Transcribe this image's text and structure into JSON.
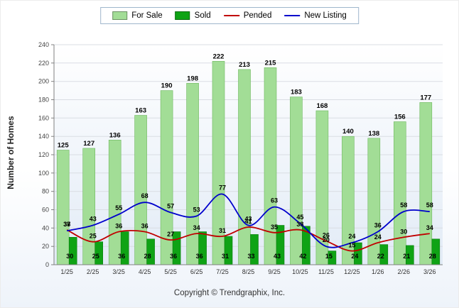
{
  "legend": {
    "items": [
      {
        "label": "For Sale",
        "swatch": "box",
        "color": "#A2DD96"
      },
      {
        "label": "Sold",
        "swatch": "box",
        "color": "#0FA315"
      },
      {
        "label": "Pended",
        "swatch": "line",
        "color": "#C00000"
      },
      {
        "label": "New Listing",
        "swatch": "line",
        "color": "#0000CC"
      }
    ]
  },
  "chart_data": {
    "type": "bar+line",
    "title": "",
    "xlabel": "",
    "ylabel": "Number of Homes",
    "ylim": [
      0,
      240
    ],
    "ytick_step": 20,
    "grid": true,
    "legend_position": "top",
    "categories": [
      "1/25",
      "2/25",
      "3/25",
      "4/25",
      "5/25",
      "6/25",
      "7/25",
      "8/25",
      "9/25",
      "10/25",
      "11/25",
      "12/25",
      "1/26",
      "2/26",
      "3/26"
    ],
    "series": [
      {
        "name": "For Sale",
        "type": "bar",
        "color": "#A2DD96",
        "border": "#6FB85F",
        "values": [
          125,
          127,
          136,
          163,
          190,
          198,
          222,
          213,
          215,
          183,
          168,
          140,
          138,
          156,
          177
        ]
      },
      {
        "name": "Sold",
        "type": "bar",
        "color": "#0FA315",
        "border": "#0A7C10",
        "values": [
          30,
          25,
          36,
          28,
          36,
          36,
          31,
          33,
          43,
          42,
          15,
          24,
          22,
          21,
          28
        ]
      },
      {
        "name": "Pended",
        "type": "line",
        "color": "#C00000",
        "values": [
          38,
          25,
          36,
          36,
          27,
          34,
          31,
          41,
          35,
          38,
          26,
          15,
          24,
          30,
          34
        ]
      },
      {
        "name": "New Listing",
        "type": "line",
        "color": "#0000CC",
        "values": [
          37,
          43,
          55,
          68,
          57,
          53,
          77,
          43,
          63,
          45,
          20,
          24,
          36,
          58,
          58
        ]
      }
    ]
  },
  "footer": {
    "copyright": "Copyright © Trendgraphix, Inc."
  }
}
